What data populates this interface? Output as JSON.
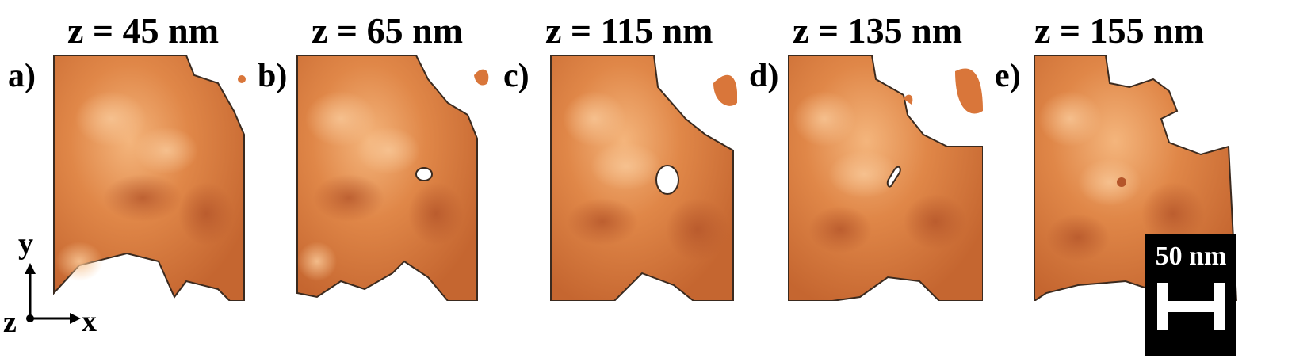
{
  "panels": [
    {
      "label": "a)",
      "title": "z = 45 nm"
    },
    {
      "label": "b)",
      "title": "z = 65 nm"
    },
    {
      "label": "c)",
      "title": "z = 115 nm"
    },
    {
      "label": "d)",
      "title": "z = 135 nm"
    },
    {
      "label": "e)",
      "title": "z = 155 nm"
    }
  ],
  "axes": {
    "y": "y",
    "x": "x",
    "z": "z"
  },
  "scalebar": {
    "label": "50 nm"
  },
  "colors": {
    "material_base": "#d9763a",
    "material_light": "#f2b27a",
    "material_dark": "#b8592a",
    "edge": "#3a2a1f"
  }
}
